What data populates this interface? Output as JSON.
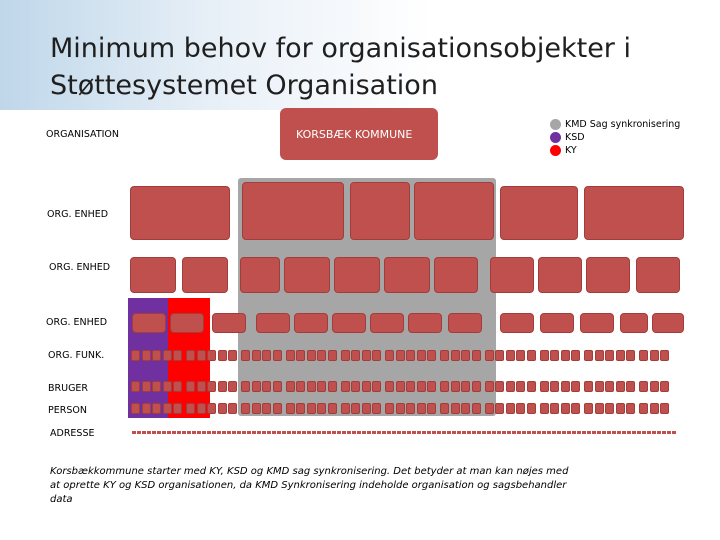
{
  "title": "Minimum behov for organisationsobjekter i Støttesystemet Organisation",
  "levels": {
    "organisation": "ORGANISATION",
    "org_enhed_1": "ORG. ENHED",
    "org_enhed_2": "ORG. ENHED",
    "org_enhed_3": "ORG. ENHED",
    "org_funk": "ORG. FUNK.",
    "bruger": "BRUGER",
    "person": "PERSON",
    "adresse": "ADRESSE"
  },
  "root_node": "KORSBÆK KOMMUNE",
  "legend": [
    {
      "label": "KMD Sag synkronisering",
      "color": "#a6a6a6"
    },
    {
      "label": "KSD",
      "color": "#7030a0"
    },
    {
      "label": "KY",
      "color": "#ff0000"
    }
  ],
  "colors": {
    "node": "#c0504d",
    "kmd": "#a6a6a6",
    "ksd": "#7030a0",
    "ky": "#ff0000"
  },
  "caption": "Korsbækkommune starter med KY, KSD og KMD sag synkronisering. Det betyder at man kan nøjes med at oprette KY og KSD organisationen, da KMD Synkronisering indeholde organisation og sagsbehandler data"
}
